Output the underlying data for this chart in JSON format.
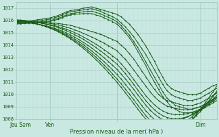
{
  "xlabel": "Pression niveau de la mer( hPa )",
  "ylim": [
    1008,
    1017.5
  ],
  "xlim": [
    0,
    96
  ],
  "yticks": [
    1008,
    1009,
    1010,
    1011,
    1012,
    1013,
    1014,
    1015,
    1016,
    1017
  ],
  "xtick_positions": [
    2,
    16,
    48,
    88
  ],
  "xtick_labels": [
    "Jeu Sam",
    "Ven",
    "",
    "Dim"
  ],
  "background_color": "#c9e8e1",
  "grid_major_color": "#a8ccc6",
  "grid_minor_color": "#b8dcd6",
  "line_color": "#1a5c1a",
  "lines": [
    {
      "x": [
        0,
        2,
        4,
        6,
        8,
        10,
        12,
        14,
        16,
        18,
        20,
        22,
        24,
        26,
        28,
        30,
        32,
        34,
        36,
        38,
        40,
        42,
        44,
        46,
        48,
        50,
        52,
        54,
        56,
        58,
        60,
        62,
        64,
        66,
        68,
        70,
        72,
        74,
        76,
        78,
        80,
        82,
        84,
        86,
        88,
        90,
        92,
        94,
        96
      ],
      "y": [
        1015.8,
        1015.85,
        1015.9,
        1015.95,
        1016.0,
        1016.05,
        1016.1,
        1016.15,
        1016.2,
        1016.3,
        1016.4,
        1016.55,
        1016.7,
        1016.8,
        1016.85,
        1016.9,
        1017.0,
        1017.05,
        1017.1,
        1017.0,
        1016.9,
        1016.8,
        1016.7,
        1016.6,
        1016.5,
        1016.3,
        1016.0,
        1015.7,
        1015.3,
        1014.9,
        1014.4,
        1013.9,
        1013.3,
        1012.7,
        1012.0,
        1011.4,
        1010.8,
        1010.5,
        1010.3,
        1010.2,
        1010.1,
        1010.0,
        1010.0,
        1010.0,
        1010.1,
        1010.3,
        1010.5,
        1010.7,
        1010.8
      ]
    },
    {
      "x": [
        0,
        2,
        4,
        6,
        8,
        10,
        12,
        14,
        16,
        18,
        20,
        22,
        24,
        26,
        28,
        30,
        32,
        34,
        36,
        38,
        40,
        42,
        44,
        46,
        48,
        50,
        52,
        54,
        56,
        58,
        60,
        62,
        64,
        66,
        68,
        70,
        72,
        74,
        76,
        78,
        80,
        82,
        84,
        86,
        88,
        90,
        92,
        94,
        96
      ],
      "y": [
        1015.8,
        1015.82,
        1015.85,
        1015.88,
        1015.92,
        1015.95,
        1016.0,
        1016.05,
        1016.1,
        1016.2,
        1016.3,
        1016.45,
        1016.6,
        1016.7,
        1016.75,
        1016.8,
        1016.85,
        1016.9,
        1016.95,
        1016.85,
        1016.75,
        1016.6,
        1016.45,
        1016.3,
        1016.1,
        1015.8,
        1015.5,
        1015.1,
        1014.7,
        1014.2,
        1013.7,
        1013.2,
        1012.6,
        1012.0,
        1011.4,
        1010.8,
        1010.3,
        1010.0,
        1009.8,
        1009.7,
        1009.6,
        1009.5,
        1009.5,
        1009.6,
        1009.7,
        1009.9,
        1010.1,
        1010.3,
        1010.5
      ]
    },
    {
      "x": [
        0,
        2,
        4,
        6,
        8,
        10,
        12,
        14,
        16,
        18,
        20,
        22,
        24,
        26,
        28,
        30,
        32,
        34,
        36,
        38,
        40,
        42,
        44,
        46,
        48,
        50,
        52,
        54,
        56,
        58,
        60,
        62,
        64,
        66,
        68,
        70,
        72,
        74,
        76,
        78,
        80,
        82,
        84,
        86,
        88,
        90,
        92,
        94,
        96
      ],
      "y": [
        1015.7,
        1015.73,
        1015.77,
        1015.8,
        1015.83,
        1015.87,
        1015.9,
        1015.93,
        1015.97,
        1016.07,
        1016.17,
        1016.3,
        1016.45,
        1016.55,
        1016.6,
        1016.65,
        1016.7,
        1016.72,
        1016.75,
        1016.65,
        1016.55,
        1016.4,
        1016.25,
        1016.1,
        1015.9,
        1015.6,
        1015.2,
        1014.8,
        1014.3,
        1013.8,
        1013.2,
        1012.6,
        1012.0,
        1011.4,
        1010.8,
        1010.2,
        1009.7,
        1009.4,
        1009.1,
        1009.0,
        1008.9,
        1008.8,
        1008.8,
        1008.9,
        1009.0,
        1009.2,
        1009.4,
        1009.6,
        1009.8
      ]
    },
    {
      "x": [
        0,
        2,
        4,
        6,
        8,
        10,
        12,
        14,
        16,
        18,
        20,
        22,
        24,
        26,
        28,
        30,
        32,
        34,
        36,
        38,
        40,
        42,
        44,
        46,
        48,
        50,
        52,
        54,
        56,
        58,
        60,
        62,
        64,
        66,
        68,
        70,
        72,
        74,
        76,
        78,
        80,
        82,
        84,
        86,
        88,
        90,
        92,
        94,
        96
      ],
      "y": [
        1015.75,
        1015.75,
        1015.75,
        1015.77,
        1015.8,
        1015.82,
        1015.85,
        1015.87,
        1015.9,
        1016.0,
        1016.1,
        1016.22,
        1016.35,
        1016.45,
        1016.5,
        1016.52,
        1016.55,
        1016.55,
        1016.55,
        1016.45,
        1016.35,
        1016.2,
        1016.05,
        1015.9,
        1015.7,
        1015.4,
        1015.0,
        1014.6,
        1014.1,
        1013.5,
        1012.9,
        1012.3,
        1011.6,
        1011.0,
        1010.4,
        1009.8,
        1009.4,
        1009.0,
        1008.8,
        1008.6,
        1008.5,
        1008.5,
        1008.5,
        1008.6,
        1008.7,
        1008.9,
        1009.1,
        1009.3,
        1009.5
      ]
    },
    {
      "x": [
        0,
        2,
        4,
        6,
        8,
        10,
        12,
        14,
        16,
        18,
        20,
        22,
        24,
        26,
        28,
        30,
        32,
        34,
        36,
        38,
        40,
        42,
        44,
        46,
        48,
        50,
        52,
        54,
        56,
        58,
        60,
        62,
        64,
        66,
        68,
        70,
        72,
        74,
        76,
        78,
        80,
        82,
        84,
        86,
        88,
        90,
        92,
        94,
        96
      ],
      "y": [
        1015.9,
        1015.88,
        1015.86,
        1015.85,
        1015.85,
        1015.84,
        1015.83,
        1015.82,
        1015.8,
        1015.78,
        1015.75,
        1015.7,
        1015.65,
        1015.6,
        1015.5,
        1015.4,
        1015.3,
        1015.2,
        1015.1,
        1015.0,
        1014.9,
        1014.75,
        1014.6,
        1014.45,
        1014.3,
        1014.0,
        1013.7,
        1013.3,
        1012.9,
        1012.4,
        1011.9,
        1011.4,
        1010.9,
        1010.4,
        1010.0,
        1009.7,
        1009.5,
        1009.4,
        1009.3,
        1009.2,
        1009.1,
        1009.1,
        1009.1,
        1009.2,
        1009.3,
        1009.5,
        1009.7,
        1009.9,
        1010.1
      ]
    },
    {
      "x": [
        0,
        2,
        4,
        6,
        8,
        10,
        12,
        14,
        16,
        18,
        20,
        22,
        24,
        26,
        28,
        30,
        32,
        34,
        36,
        38,
        40,
        42,
        44,
        46,
        48,
        50,
        52,
        54,
        56,
        58,
        60,
        62,
        64,
        66,
        68,
        70,
        72,
        74,
        76,
        78,
        80,
        82,
        84,
        86,
        88,
        90,
        92,
        94,
        96
      ],
      "y": [
        1016.0,
        1015.98,
        1015.96,
        1015.93,
        1015.9,
        1015.87,
        1015.83,
        1015.8,
        1015.75,
        1015.7,
        1015.63,
        1015.55,
        1015.45,
        1015.35,
        1015.23,
        1015.1,
        1014.95,
        1014.8,
        1014.65,
        1014.5,
        1014.32,
        1014.15,
        1013.95,
        1013.75,
        1013.55,
        1013.2,
        1012.85,
        1012.45,
        1012.0,
        1011.55,
        1011.1,
        1010.65,
        1010.2,
        1009.8,
        1009.5,
        1009.25,
        1009.05,
        1008.95,
        1008.85,
        1008.8,
        1008.75,
        1008.75,
        1008.8,
        1008.9,
        1009.0,
        1009.15,
        1009.35,
        1009.55,
        1009.75
      ]
    },
    {
      "x": [
        0,
        2,
        4,
        6,
        8,
        10,
        12,
        14,
        16,
        18,
        20,
        22,
        24,
        26,
        28,
        30,
        32,
        34,
        36,
        38,
        40,
        42,
        44,
        46,
        48,
        50,
        52,
        54,
        56,
        58,
        60,
        62,
        64,
        66,
        68,
        70,
        72,
        74,
        76,
        78,
        80,
        82,
        84,
        86,
        88,
        90,
        92,
        94,
        96
      ],
      "y": [
        1016.0,
        1015.98,
        1015.95,
        1015.91,
        1015.87,
        1015.82,
        1015.77,
        1015.71,
        1015.65,
        1015.58,
        1015.49,
        1015.39,
        1015.28,
        1015.15,
        1015.0,
        1014.84,
        1014.66,
        1014.47,
        1014.28,
        1014.07,
        1013.85,
        1013.62,
        1013.38,
        1013.12,
        1012.85,
        1012.5,
        1012.1,
        1011.68,
        1011.23,
        1010.77,
        1010.32,
        1009.87,
        1009.5,
        1009.15,
        1008.87,
        1008.65,
        1008.5,
        1008.4,
        1008.35,
        1008.35,
        1008.38,
        1008.45,
        1008.55,
        1008.67,
        1008.82,
        1009.0,
        1009.2,
        1009.42,
        1009.65
      ]
    },
    {
      "x": [
        0,
        2,
        4,
        6,
        8,
        10,
        12,
        14,
        16,
        18,
        20,
        22,
        24,
        26,
        28,
        30,
        32,
        34,
        36,
        38,
        40,
        42,
        44,
        46,
        48,
        50,
        52,
        54,
        56,
        58,
        60,
        62,
        64,
        66,
        68,
        70,
        72,
        74,
        76,
        78,
        80,
        82,
        84,
        86,
        88,
        90,
        92,
        94,
        96
      ],
      "y": [
        1016.05,
        1016.03,
        1016.0,
        1015.96,
        1015.91,
        1015.85,
        1015.78,
        1015.7,
        1015.62,
        1015.52,
        1015.41,
        1015.29,
        1015.15,
        1015.0,
        1014.83,
        1014.65,
        1014.46,
        1014.25,
        1014.03,
        1013.8,
        1013.55,
        1013.3,
        1013.03,
        1012.75,
        1012.46,
        1012.1,
        1011.7,
        1011.28,
        1010.83,
        1010.37,
        1009.9,
        1009.47,
        1009.1,
        1008.75,
        1008.47,
        1008.27,
        1008.12,
        1008.05,
        1008.02,
        1008.04,
        1008.1,
        1008.2,
        1008.35,
        1008.52,
        1008.73,
        1008.97,
        1009.23,
        1009.5,
        1009.8
      ]
    },
    {
      "x": [
        0,
        2,
        4,
        6,
        8,
        10,
        12,
        14,
        16,
        18,
        20,
        22,
        24,
        26,
        28,
        30,
        32,
        34,
        36,
        38,
        40,
        42,
        44,
        46,
        48,
        50,
        52,
        54,
        56,
        58,
        60,
        62,
        64,
        66,
        68,
        70,
        72,
        74,
        76,
        78,
        80,
        82,
        84,
        86,
        88,
        90,
        92,
        94,
        96
      ],
      "y": [
        1015.85,
        1015.84,
        1015.82,
        1015.79,
        1015.75,
        1015.7,
        1015.64,
        1015.57,
        1015.48,
        1015.38,
        1015.26,
        1015.13,
        1014.98,
        1014.81,
        1014.63,
        1014.43,
        1014.22,
        1014.0,
        1013.76,
        1013.51,
        1013.24,
        1012.96,
        1012.67,
        1012.36,
        1012.04,
        1011.67,
        1011.28,
        1010.87,
        1010.43,
        1009.98,
        1009.53,
        1009.1,
        1008.73,
        1008.4,
        1008.14,
        1007.95,
        1007.85,
        1007.82,
        1007.85,
        1007.92,
        1008.03,
        1008.18,
        1008.35,
        1008.56,
        1008.8,
        1009.05,
        1009.33,
        1009.62,
        1009.93
      ]
    },
    {
      "x": [
        0,
        2,
        4,
        6,
        8,
        10,
        12,
        14,
        16,
        18,
        20,
        22,
        24,
        26,
        28,
        30,
        32,
        34,
        36,
        38,
        40,
        42,
        44,
        46,
        48,
        50,
        52,
        54,
        56,
        58,
        60,
        62,
        64,
        66,
        68,
        70,
        72,
        74,
        76,
        78,
        80,
        82,
        84,
        86,
        88,
        90,
        92,
        94,
        96
      ],
      "y": [
        1015.9,
        1015.88,
        1015.85,
        1015.81,
        1015.76,
        1015.7,
        1015.62,
        1015.53,
        1015.43,
        1015.31,
        1015.18,
        1015.03,
        1014.86,
        1014.68,
        1014.48,
        1014.26,
        1014.03,
        1013.78,
        1013.52,
        1013.24,
        1012.95,
        1012.64,
        1012.32,
        1011.98,
        1011.63,
        1011.25,
        1010.84,
        1010.42,
        1009.98,
        1009.53,
        1009.08,
        1008.65,
        1008.28,
        1007.95,
        1007.7,
        1007.52,
        1007.43,
        1007.42,
        1007.48,
        1007.58,
        1007.73,
        1007.93,
        1008.17,
        1008.45,
        1008.77,
        1009.1,
        1009.46,
        1009.83,
        1010.22
      ]
    },
    {
      "x": [
        0,
        2,
        4,
        6,
        8,
        10,
        12,
        14,
        16,
        18,
        20,
        22,
        24,
        26,
        28,
        30,
        32,
        34,
        36,
        38,
        40,
        42,
        44,
        46,
        48,
        50,
        52,
        54,
        56,
        58,
        60,
        62,
        64,
        66,
        68,
        70,
        72,
        74,
        76,
        78,
        80,
        82,
        84,
        86,
        88,
        90,
        92,
        94,
        96
      ],
      "y": [
        1015.95,
        1015.92,
        1015.88,
        1015.83,
        1015.77,
        1015.7,
        1015.61,
        1015.51,
        1015.39,
        1015.26,
        1015.11,
        1014.95,
        1014.77,
        1014.57,
        1014.35,
        1014.12,
        1013.87,
        1013.6,
        1013.32,
        1013.02,
        1012.7,
        1012.37,
        1012.02,
        1011.65,
        1011.27,
        1010.87,
        1010.45,
        1010.02,
        1009.58,
        1009.13,
        1008.68,
        1008.25,
        1007.88,
        1007.55,
        1007.3,
        1007.13,
        1007.05,
        1007.05,
        1007.12,
        1007.25,
        1007.42,
        1007.65,
        1007.93,
        1008.25,
        1008.62,
        1009.0,
        1009.42,
        1009.85,
        1010.3
      ]
    },
    {
      "x": [
        0,
        2,
        4,
        6,
        8,
        10,
        12,
        14,
        16,
        18,
        20,
        22,
        24,
        26,
        28,
        30,
        32,
        34,
        36,
        38,
        40,
        42,
        44,
        46,
        48,
        50,
        52,
        54,
        56,
        58,
        60,
        62,
        64,
        66,
        68,
        70,
        72,
        74,
        76,
        78,
        80,
        82,
        84,
        86,
        88,
        90,
        92,
        94,
        96
      ],
      "y": [
        1016.0,
        1015.97,
        1015.93,
        1015.87,
        1015.8,
        1015.72,
        1015.62,
        1015.51,
        1015.38,
        1015.24,
        1015.08,
        1014.9,
        1014.7,
        1014.48,
        1014.25,
        1014.0,
        1013.73,
        1013.45,
        1013.15,
        1012.83,
        1012.5,
        1012.15,
        1011.78,
        1011.4,
        1011.0,
        1010.58,
        1010.15,
        1009.72,
        1009.27,
        1008.82,
        1008.38,
        1007.97,
        1007.6,
        1007.28,
        1007.04,
        1006.88,
        1006.82,
        1006.84,
        1006.95,
        1007.12,
        1007.35,
        1007.63,
        1007.97,
        1008.35,
        1008.78,
        1009.23,
        1009.7,
        1010.2,
        1010.72
      ]
    }
  ]
}
